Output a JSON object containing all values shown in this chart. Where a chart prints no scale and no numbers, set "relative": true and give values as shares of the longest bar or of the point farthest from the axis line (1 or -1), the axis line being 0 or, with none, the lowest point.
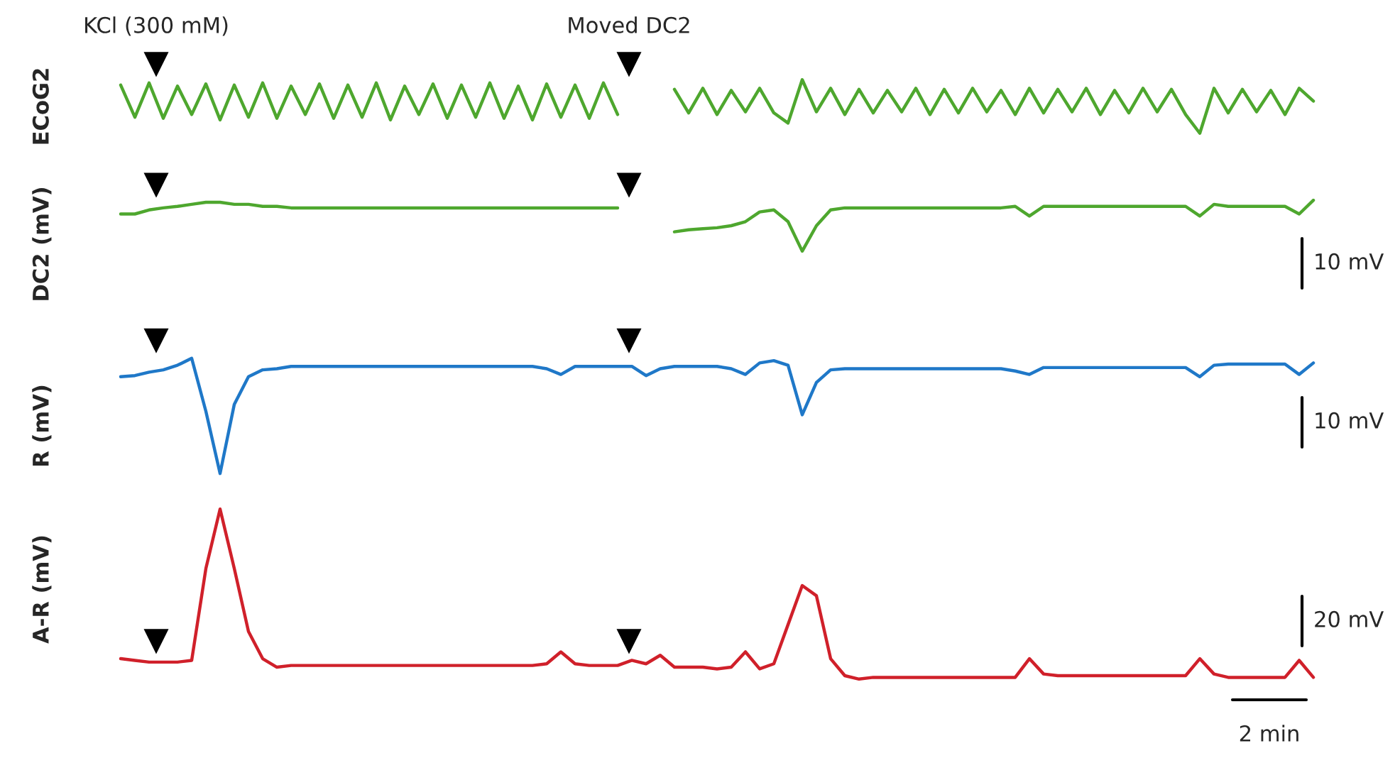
{
  "chart_data": [
    {
      "type": "line",
      "relative": true,
      "ylabel": "ECoG2",
      "annotations": [
        "KCl (300 mM)",
        "Moved DC2"
      ],
      "categories": [
        null,
        null,
        null,
        null,
        null,
        null,
        null,
        null,
        null,
        null,
        null,
        null,
        null,
        null,
        null,
        null,
        null,
        null,
        null,
        null,
        null,
        null,
        null,
        null,
        null,
        null,
        null,
        null,
        null,
        null,
        null,
        null,
        null,
        null,
        null,
        null,
        null,
        null,
        null,
        null,
        null,
        null,
        null,
        null,
        null,
        null,
        null,
        null,
        null,
        null,
        null,
        null,
        null,
        null,
        null,
        null,
        null,
        null,
        null,
        null,
        null,
        null,
        null,
        null,
        null,
        null,
        null,
        null,
        null,
        null,
        null,
        null,
        null,
        null,
        null,
        null,
        null,
        null,
        null,
        null,
        null,
        null,
        null,
        null,
        null
      ],
      "series": [
        {
          "color": "#4ea72e",
          "values": [
            0.9,
            0.3,
            0.94,
            0.28,
            0.88,
            0.35,
            0.92,
            0.25,
            0.9,
            0.3,
            0.94,
            0.28,
            0.88,
            0.35,
            0.92,
            0.28,
            0.9,
            0.3,
            0.94,
            0.25,
            0.88,
            0.35,
            0.92,
            0.28,
            0.9,
            0.3,
            0.94,
            0.28,
            0.88,
            0.25,
            0.92,
            0.3,
            0.9,
            0.28,
            0.94,
            0.35,
            null,
            null,
            null,
            null,
            null,
            null,
            null,
            null,
            null,
            null,
            null,
            null,
            null,
            null,
            null,
            null,
            null,
            null,
            null,
            null,
            null,
            null,
            null,
            null,
            null,
            null,
            null,
            null,
            null,
            null,
            null,
            null,
            null,
            null,
            null,
            null,
            null,
            null,
            null,
            null,
            null,
            null,
            null,
            null,
            null,
            null,
            null,
            null,
            null
          ]
        },
        {
          "color": "#4ea72e",
          "values": [
            null,
            null,
            null,
            null,
            null,
            null,
            null,
            null,
            null,
            null,
            null,
            null,
            null,
            null,
            null,
            null,
            null,
            null,
            null,
            null,
            null,
            null,
            null,
            null,
            null,
            null,
            null,
            null,
            null,
            null,
            null,
            null,
            null,
            null,
            null,
            null,
            null,
            null,
            null,
            0.82,
            0.38,
            0.84,
            0.35,
            0.8,
            0.4,
            0.84,
            0.38,
            0.19,
            1,
            0.4,
            0.84,
            0.35,
            0.82,
            0.38,
            0.8,
            0.4,
            0.84,
            0.35,
            0.82,
            0.38,
            0.84,
            0.4,
            0.8,
            0.35,
            0.84,
            0.38,
            0.82,
            0.4,
            0.84,
            0.35,
            0.8,
            0.38,
            0.84,
            0.4,
            0.82,
            0.35,
            0,
            0.84,
            0.38,
            0.82,
            0.4,
            0.8,
            0.35,
            0.84,
            0.6
          ]
        }
      ]
    },
    {
      "type": "line",
      "relative": true,
      "ylabel": "DC2 (mV)",
      "annotations": [
        "10 mV"
      ],
      "categories": [
        null,
        null,
        null,
        null,
        null,
        null,
        null,
        null,
        null,
        null,
        null,
        null,
        null,
        null,
        null,
        null,
        null,
        null,
        null,
        null,
        null,
        null,
        null,
        null,
        null,
        null,
        null,
        null,
        null,
        null,
        null,
        null,
        null,
        null,
        null,
        null,
        null,
        null,
        null,
        null,
        null,
        null,
        null,
        null,
        null,
        null,
        null,
        null,
        null,
        null,
        null,
        null,
        null,
        null,
        null,
        null,
        null,
        null,
        null,
        null,
        null,
        null,
        null,
        null,
        null,
        null,
        null,
        null,
        null,
        null,
        null,
        null,
        null,
        null,
        null,
        null,
        null,
        null,
        null,
        null,
        null,
        null,
        null,
        null,
        null
      ],
      "series": [
        {
          "color": "#4ea72e",
          "values": [
            0.73,
            0.73,
            0.81,
            0.85,
            0.88,
            0.92,
            0.96,
            0.96,
            0.92,
            0.92,
            0.88,
            0.88,
            0.85,
            0.85,
            0.85,
            0.85,
            0.85,
            0.85,
            0.85,
            0.85,
            0.85,
            0.85,
            0.85,
            0.85,
            0.85,
            0.85,
            0.85,
            0.85,
            0.85,
            0.85,
            0.85,
            0.85,
            0.85,
            0.85,
            0.85,
            0.85,
            null,
            null,
            null,
            null,
            null,
            null,
            null,
            null,
            null,
            null,
            null,
            null,
            null,
            null,
            null,
            null,
            null,
            null,
            null,
            null,
            null,
            null,
            null,
            null,
            null,
            null,
            null,
            null,
            null,
            null,
            null,
            null,
            null,
            null,
            null,
            null,
            null,
            null,
            null,
            null,
            null,
            null,
            null,
            null,
            null,
            null,
            null,
            null,
            null
          ]
        },
        {
          "color": "#4ea72e",
          "values": [
            null,
            null,
            null,
            null,
            null,
            null,
            null,
            null,
            null,
            null,
            null,
            null,
            null,
            null,
            null,
            null,
            null,
            null,
            null,
            null,
            null,
            null,
            null,
            null,
            null,
            null,
            null,
            null,
            null,
            null,
            null,
            null,
            null,
            null,
            null,
            null,
            null,
            null,
            null,
            0.38,
            0.42,
            0.44,
            0.46,
            0.5,
            0.58,
            0.77,
            0.81,
            0.58,
            0,
            0.5,
            0.81,
            0.85,
            0.85,
            0.85,
            0.85,
            0.85,
            0.85,
            0.85,
            0.85,
            0.85,
            0.85,
            0.85,
            0.85,
            0.88,
            0.69,
            0.88,
            0.88,
            0.88,
            0.88,
            0.88,
            0.88,
            0.88,
            0.88,
            0.88,
            0.88,
            0.88,
            0.69,
            0.92,
            0.88,
            0.88,
            0.88,
            0.88,
            0.88,
            0.73,
            1
          ]
        }
      ]
    },
    {
      "type": "line",
      "relative": true,
      "ylabel": "R (mV)",
      "annotations": [
        "10 mV"
      ],
      "categories": [
        null,
        null,
        null,
        null,
        null,
        null,
        null,
        null,
        null,
        null,
        null,
        null,
        null,
        null,
        null,
        null,
        null,
        null,
        null,
        null,
        null,
        null,
        null,
        null,
        null,
        null,
        null,
        null,
        null,
        null,
        null,
        null,
        null,
        null,
        null,
        null,
        null,
        null,
        null,
        null,
        null,
        null,
        null,
        null,
        null,
        null,
        null,
        null,
        null,
        null,
        null,
        null,
        null,
        null,
        null,
        null,
        null,
        null,
        null,
        null,
        null,
        null,
        null,
        null,
        null,
        null,
        null,
        null,
        null,
        null,
        null,
        null,
        null,
        null,
        null,
        null,
        null,
        null,
        null,
        null,
        null,
        null,
        null,
        null,
        null
      ],
      "series": [
        {
          "color": "#1f78c8",
          "values": [
            0.84,
            0.85,
            0.88,
            0.9,
            0.94,
            1,
            0.54,
            0,
            0.6,
            0.84,
            0.9,
            0.91,
            0.93,
            0.93,
            0.93,
            0.93,
            0.93,
            0.93,
            0.93,
            0.93,
            0.93,
            0.93,
            0.93,
            0.93,
            0.93,
            0.93,
            0.93,
            0.93,
            0.93,
            0.93,
            0.91,
            0.86,
            0.93,
            0.93,
            0.93,
            0.93,
            0.93,
            0.85,
            0.91,
            0.93,
            0.93,
            0.93,
            0.93,
            0.91,
            0.86,
            0.96,
            0.98,
            0.94,
            0.51,
            0.79,
            0.9,
            0.91,
            0.91,
            0.91,
            0.91,
            0.91,
            0.91,
            0.91,
            0.91,
            0.91,
            0.91,
            0.91,
            0.91,
            0.89,
            0.86,
            0.92,
            0.92,
            0.92,
            0.92,
            0.92,
            0.92,
            0.92,
            0.92,
            0.92,
            0.92,
            0.92,
            0.84,
            0.94,
            0.95,
            0.95,
            0.95,
            0.95,
            0.95,
            0.86,
            0.96
          ]
        }
      ]
    },
    {
      "type": "line",
      "relative": true,
      "ylabel": "A-R (mV)",
      "annotations": [
        "20 mV",
        "2 min"
      ],
      "categories": [
        null,
        null,
        null,
        null,
        null,
        null,
        null,
        null,
        null,
        null,
        null,
        null,
        null,
        null,
        null,
        null,
        null,
        null,
        null,
        null,
        null,
        null,
        null,
        null,
        null,
        null,
        null,
        null,
        null,
        null,
        null,
        null,
        null,
        null,
        null,
        null,
        null,
        null,
        null,
        null,
        null,
        null,
        null,
        null,
        null,
        null,
        null,
        null,
        null,
        null,
        null,
        null,
        null,
        null,
        null,
        null,
        null,
        null,
        null,
        null,
        null,
        null,
        null,
        null,
        null,
        null,
        null,
        null,
        null,
        null,
        null,
        null,
        null,
        null,
        null,
        null,
        null,
        null,
        null,
        null,
        null,
        null,
        null,
        null,
        null
      ],
      "series": [
        {
          "color": "#d0202a",
          "values": [
            0.12,
            0.11,
            0.1,
            0.1,
            0.1,
            0.11,
            0.65,
            1,
            0.65,
            0.28,
            0.12,
            0.07,
            0.08,
            0.08,
            0.08,
            0.08,
            0.08,
            0.08,
            0.08,
            0.08,
            0.08,
            0.08,
            0.08,
            0.08,
            0.08,
            0.08,
            0.08,
            0.08,
            0.08,
            0.08,
            0.09,
            0.16,
            0.09,
            0.08,
            0.08,
            0.08,
            0.11,
            0.09,
            0.14,
            0.07,
            0.07,
            0.07,
            0.06,
            0.07,
            0.16,
            0.06,
            0.09,
            0.32,
            0.55,
            0.49,
            0.12,
            0.02,
            0,
            0.01,
            0.01,
            0.01,
            0.01,
            0.01,
            0.01,
            0.01,
            0.01,
            0.01,
            0.01,
            0.01,
            0.12,
            0.03,
            0.02,
            0.02,
            0.02,
            0.02,
            0.02,
            0.02,
            0.02,
            0.02,
            0.02,
            0.02,
            0.12,
            0.03,
            0.01,
            0.01,
            0.01,
            0.01,
            0.01,
            0.11,
            0.01
          ]
        }
      ]
    }
  ]
}
